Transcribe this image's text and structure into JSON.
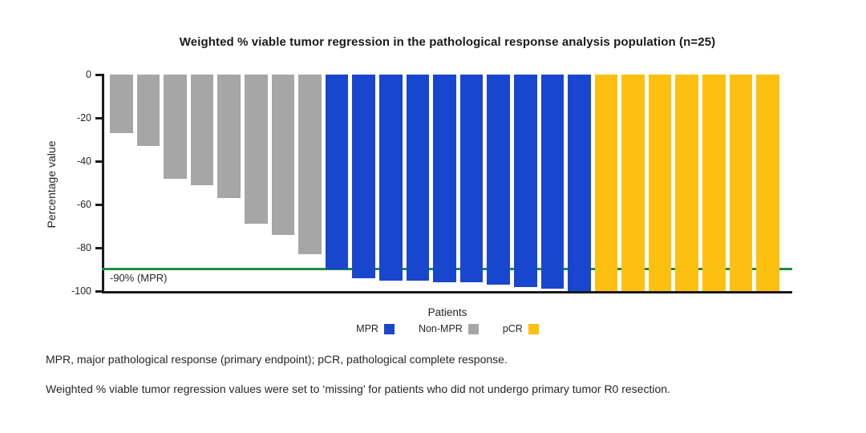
{
  "chart_data": {
    "type": "bar",
    "title": "Weighted % viable tumor regression in the pathological response analysis population (n=25)",
    "xlabel": "Patients",
    "ylabel": "Percentage value",
    "ylim": [
      -100,
      0
    ],
    "yticks": [
      0,
      -20,
      -40,
      -60,
      -80,
      -100
    ],
    "grid": false,
    "legend_position": "bottom",
    "reference_line": {
      "value": -90,
      "label": "-90% (MPR)",
      "color": "#1E8E3E"
    },
    "groups": [
      {
        "name": "MPR",
        "color": "#1946CE"
      },
      {
        "name": "Non-MPR",
        "color": "#A6A6A6"
      },
      {
        "name": "pCR",
        "color": "#FDC010"
      }
    ],
    "bars": [
      {
        "group": "Non-MPR",
        "value": -27
      },
      {
        "group": "Non-MPR",
        "value": -33
      },
      {
        "group": "Non-MPR",
        "value": -48
      },
      {
        "group": "Non-MPR",
        "value": -51
      },
      {
        "group": "Non-MPR",
        "value": -57
      },
      {
        "group": "Non-MPR",
        "value": -69
      },
      {
        "group": "Non-MPR",
        "value": -74
      },
      {
        "group": "Non-MPR",
        "value": -83
      },
      {
        "group": "MPR",
        "value": -90
      },
      {
        "group": "MPR",
        "value": -94
      },
      {
        "group": "MPR",
        "value": -95
      },
      {
        "group": "MPR",
        "value": -95
      },
      {
        "group": "MPR",
        "value": -96
      },
      {
        "group": "MPR",
        "value": -96
      },
      {
        "group": "MPR",
        "value": -97
      },
      {
        "group": "MPR",
        "value": -98
      },
      {
        "group": "MPR",
        "value": -99
      },
      {
        "group": "MPR",
        "value": -100
      },
      {
        "group": "pCR",
        "value": -100
      },
      {
        "group": "pCR",
        "value": -100
      },
      {
        "group": "pCR",
        "value": -100
      },
      {
        "group": "pCR",
        "value": -100
      },
      {
        "group": "pCR",
        "value": -100
      },
      {
        "group": "pCR",
        "value": -100
      },
      {
        "group": "pCR",
        "value": -100
      }
    ]
  },
  "footnotes": [
    "MPR, major pathological response (primary endpoint); pCR, pathological complete response.",
    "Weighted % viable tumor regression values were set to ‘missing’ for patients who did not undergo primary tumor R0 resection."
  ]
}
